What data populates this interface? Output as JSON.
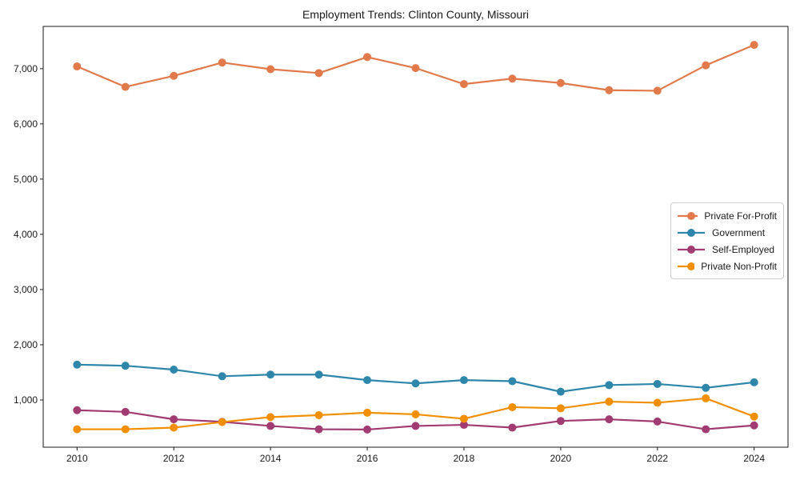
{
  "chart_data": {
    "type": "line",
    "title": "Employment Trends: Clinton County, Missouri",
    "xlabel": "",
    "ylabel": "",
    "x": [
      2010,
      2011,
      2012,
      2013,
      2014,
      2015,
      2016,
      2017,
      2018,
      2019,
      2020,
      2021,
      2022,
      2023,
      2024
    ],
    "series": [
      {
        "name": "Private For-Profit",
        "color": "#E2794B",
        "values": [
          7040,
          6670,
          6870,
          7110,
          6990,
          6920,
          7210,
          7010,
          6720,
          6820,
          6740,
          6610,
          6600,
          7060,
          7430
        ]
      },
      {
        "name": "Government",
        "color": "#2E86AB",
        "values": [
          1640,
          1620,
          1550,
          1430,
          1460,
          1460,
          1360,
          1300,
          1360,
          1340,
          1150,
          1270,
          1290,
          1220,
          1320
        ]
      },
      {
        "name": "Self-Employed",
        "color": "#A23B72",
        "values": [
          815,
          785,
          650,
          605,
          530,
          470,
          465,
          530,
          550,
          500,
          620,
          650,
          610,
          470,
          540
        ]
      },
      {
        "name": "Private Non-Profit",
        "color": "#F18F01",
        "values": [
          470,
          470,
          500,
          600,
          690,
          725,
          770,
          740,
          660,
          870,
          850,
          970,
          950,
          1030,
          700
        ]
      }
    ],
    "xticks": [
      2010,
      2012,
      2014,
      2016,
      2018,
      2020,
      2022,
      2024
    ],
    "xtick_labels": [
      "2010",
      "2012",
      "2014",
      "2016",
      "2018",
      "2020",
      "2022",
      "2024"
    ],
    "yticks": [
      1000,
      2000,
      3000,
      4000,
      5000,
      6000,
      7000
    ],
    "ytick_labels": [
      "1,000",
      "2,000",
      "3,000",
      "4,000",
      "5,000",
      "6,000",
      "7,000"
    ],
    "xlim": [
      2009.3,
      2024.7
    ],
    "ylim": [
      145,
      7765
    ],
    "grid": false,
    "legend_position": "center right",
    "axis_color": "#1a1a1a"
  }
}
